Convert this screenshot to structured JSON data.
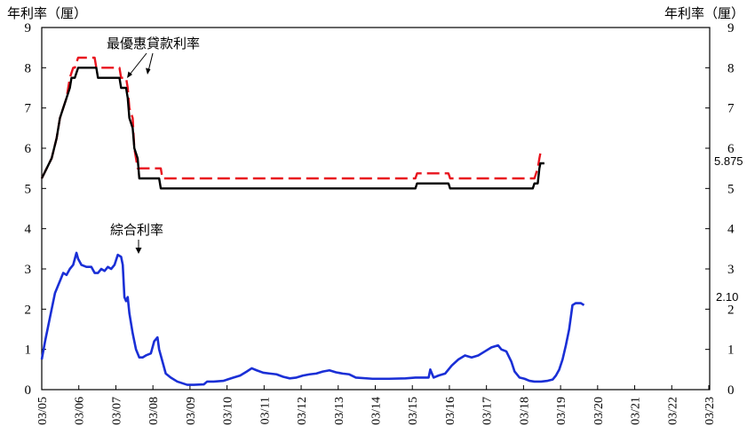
{
  "chart_data": {
    "type": "line",
    "ylabel_left": "年利率（厘）",
    "ylabel_right": "年利率（厘）",
    "ylim": [
      0,
      9
    ],
    "yticks": [
      0,
      1,
      2,
      3,
      4,
      5,
      6,
      7,
      8,
      9
    ],
    "xlim": [
      2003.0,
      2023.2
    ],
    "xtick_labels": [
      "03/05",
      "03/06",
      "03/07",
      "03/08",
      "03/09",
      "03/10",
      "03/11",
      "03/12",
      "03/13",
      "03/14",
      "03/15",
      "03/16",
      "03/17",
      "03/18",
      "03/19",
      "03/20",
      "03/21",
      "03/22",
      "03/23"
    ],
    "grid": false,
    "annotations": {
      "prime": "最優惠貸款利率",
      "composite": "綜合利率"
    },
    "end_labels": {
      "prime_high": "5.875",
      "composite": "2.10"
    },
    "series": [
      {
        "key": "prime_high",
        "color": "#e8141e",
        "style": "dashed",
        "points": [
          [
            2003.0,
            5.25
          ],
          [
            2003.15,
            5.5
          ],
          [
            2003.3,
            5.75
          ],
          [
            2003.45,
            6.25
          ],
          [
            2003.55,
            6.75
          ],
          [
            2003.65,
            7.0
          ],
          [
            2003.75,
            7.25
          ],
          [
            2003.85,
            7.75
          ],
          [
            2003.95,
            8.0
          ],
          [
            2004.0,
            8.0
          ],
          [
            2004.1,
            8.25
          ],
          [
            2004.6,
            8.25
          ],
          [
            2004.65,
            8.0
          ],
          [
            2005.35,
            8.0
          ],
          [
            2005.4,
            7.75
          ],
          [
            2005.55,
            7.75
          ],
          [
            2005.6,
            7.5
          ],
          [
            2005.65,
            7.0
          ],
          [
            2005.75,
            6.75
          ],
          [
            2005.8,
            6.0
          ],
          [
            2005.9,
            5.5
          ],
          [
            2006.6,
            5.5
          ],
          [
            2006.65,
            5.25
          ],
          [
            2014.3,
            5.25
          ],
          [
            2014.35,
            5.375
          ],
          [
            2015.3,
            5.375
          ],
          [
            2015.35,
            5.25
          ],
          [
            2017.9,
            5.25
          ],
          [
            2018.0,
            5.5
          ],
          [
            2018.05,
            5.75
          ],
          [
            2018.08,
            5.875
          ],
          [
            2018.2,
            5.875
          ]
        ]
      },
      {
        "key": "prime_low",
        "color": "#000000",
        "style": "solid",
        "points": [
          [
            2003.0,
            5.25
          ],
          [
            2003.15,
            5.5
          ],
          [
            2003.3,
            5.75
          ],
          [
            2003.45,
            6.25
          ],
          [
            2003.55,
            6.75
          ],
          [
            2003.65,
            7.0
          ],
          [
            2003.75,
            7.25
          ],
          [
            2003.85,
            7.5
          ],
          [
            2003.9,
            7.75
          ],
          [
            2004.0,
            7.75
          ],
          [
            2004.1,
            8.0
          ],
          [
            2004.65,
            8.0
          ],
          [
            2004.7,
            7.75
          ],
          [
            2005.35,
            7.75
          ],
          [
            2005.4,
            7.5
          ],
          [
            2005.55,
            7.5
          ],
          [
            2005.6,
            7.25
          ],
          [
            2005.65,
            6.75
          ],
          [
            2005.75,
            6.5
          ],
          [
            2005.8,
            6.0
          ],
          [
            2005.9,
            5.75
          ],
          [
            2005.95,
            5.25
          ],
          [
            2006.55,
            5.25
          ],
          [
            2006.6,
            5.0
          ],
          [
            2014.3,
            5.0
          ],
          [
            2014.35,
            5.125
          ],
          [
            2015.3,
            5.125
          ],
          [
            2015.35,
            5.0
          ],
          [
            2017.85,
            5.0
          ],
          [
            2017.9,
            5.125
          ],
          [
            2018.0,
            5.125
          ],
          [
            2018.05,
            5.5
          ],
          [
            2018.08,
            5.625
          ],
          [
            2018.2,
            5.625
          ]
        ]
      },
      {
        "key": "composite",
        "color": "#1a2fd6",
        "style": "solid",
        "points": [
          [
            2003.0,
            0.75
          ],
          [
            2003.1,
            1.2
          ],
          [
            2003.25,
            1.8
          ],
          [
            2003.4,
            2.4
          ],
          [
            2003.55,
            2.7
          ],
          [
            2003.65,
            2.9
          ],
          [
            2003.75,
            2.85
          ],
          [
            2003.85,
            3.0
          ],
          [
            2003.95,
            3.1
          ],
          [
            2004.05,
            3.4
          ],
          [
            2004.1,
            3.25
          ],
          [
            2004.2,
            3.1
          ],
          [
            2004.35,
            3.05
          ],
          [
            2004.5,
            3.05
          ],
          [
            2004.6,
            2.9
          ],
          [
            2004.7,
            2.9
          ],
          [
            2004.8,
            3.0
          ],
          [
            2004.9,
            2.95
          ],
          [
            2005.0,
            3.05
          ],
          [
            2005.1,
            3.0
          ],
          [
            2005.2,
            3.1
          ],
          [
            2005.3,
            3.35
          ],
          [
            2005.4,
            3.3
          ],
          [
            2005.45,
            3.1
          ],
          [
            2005.5,
            2.3
          ],
          [
            2005.55,
            2.2
          ],
          [
            2005.6,
            2.3
          ],
          [
            2005.65,
            1.9
          ],
          [
            2005.75,
            1.4
          ],
          [
            2005.85,
            1.0
          ],
          [
            2005.95,
            0.8
          ],
          [
            2006.05,
            0.8
          ],
          [
            2006.15,
            0.85
          ],
          [
            2006.3,
            0.9
          ],
          [
            2006.4,
            1.2
          ],
          [
            2006.5,
            1.3
          ],
          [
            2006.55,
            1.0
          ],
          [
            2006.65,
            0.7
          ],
          [
            2006.75,
            0.4
          ],
          [
            2006.9,
            0.3
          ],
          [
            2007.1,
            0.2
          ],
          [
            2007.4,
            0.12
          ],
          [
            2007.6,
            0.12
          ],
          [
            2007.9,
            0.13
          ],
          [
            2008.0,
            0.2
          ],
          [
            2008.2,
            0.2
          ],
          [
            2008.5,
            0.22
          ],
          [
            2008.8,
            0.3
          ],
          [
            2009.0,
            0.35
          ],
          [
            2009.2,
            0.45
          ],
          [
            2009.35,
            0.53
          ],
          [
            2009.5,
            0.48
          ],
          [
            2009.7,
            0.42
          ],
          [
            2009.9,
            0.4
          ],
          [
            2010.1,
            0.38
          ],
          [
            2010.3,
            0.32
          ],
          [
            2010.5,
            0.28
          ],
          [
            2010.7,
            0.3
          ],
          [
            2010.9,
            0.35
          ],
          [
            2011.1,
            0.38
          ],
          [
            2011.3,
            0.4
          ],
          [
            2011.5,
            0.45
          ],
          [
            2011.7,
            0.48
          ],
          [
            2011.9,
            0.43
          ],
          [
            2012.1,
            0.4
          ],
          [
            2012.3,
            0.38
          ],
          [
            2012.5,
            0.3
          ],
          [
            2013.0,
            0.27
          ],
          [
            2013.5,
            0.27
          ],
          [
            2014.0,
            0.28
          ],
          [
            2014.3,
            0.3
          ],
          [
            2014.55,
            0.3
          ],
          [
            2014.7,
            0.3
          ],
          [
            2014.75,
            0.5
          ],
          [
            2014.85,
            0.3
          ],
          [
            2015.0,
            0.35
          ],
          [
            2015.2,
            0.4
          ],
          [
            2015.4,
            0.6
          ],
          [
            2015.6,
            0.75
          ],
          [
            2015.8,
            0.85
          ],
          [
            2016.0,
            0.8
          ],
          [
            2016.2,
            0.85
          ],
          [
            2016.4,
            0.95
          ],
          [
            2016.6,
            1.05
          ],
          [
            2016.8,
            1.1
          ],
          [
            2016.9,
            1.0
          ],
          [
            2017.05,
            0.95
          ],
          [
            2017.2,
            0.7
          ],
          [
            2017.3,
            0.45
          ],
          [
            2017.45,
            0.3
          ],
          [
            2017.6,
            0.27
          ],
          [
            2017.75,
            0.22
          ],
          [
            2017.9,
            0.2
          ],
          [
            2018.1,
            0.2
          ],
          [
            2018.3,
            0.22
          ],
          [
            2018.45,
            0.25
          ],
          [
            2018.55,
            0.35
          ],
          [
            2018.65,
            0.5
          ],
          [
            2018.75,
            0.75
          ],
          [
            2018.85,
            1.1
          ],
          [
            2018.95,
            1.5
          ],
          [
            2019.05,
            2.1
          ],
          [
            2019.15,
            2.15
          ],
          [
            2019.3,
            2.15
          ],
          [
            2019.4,
            2.1
          ]
        ]
      }
    ]
  }
}
